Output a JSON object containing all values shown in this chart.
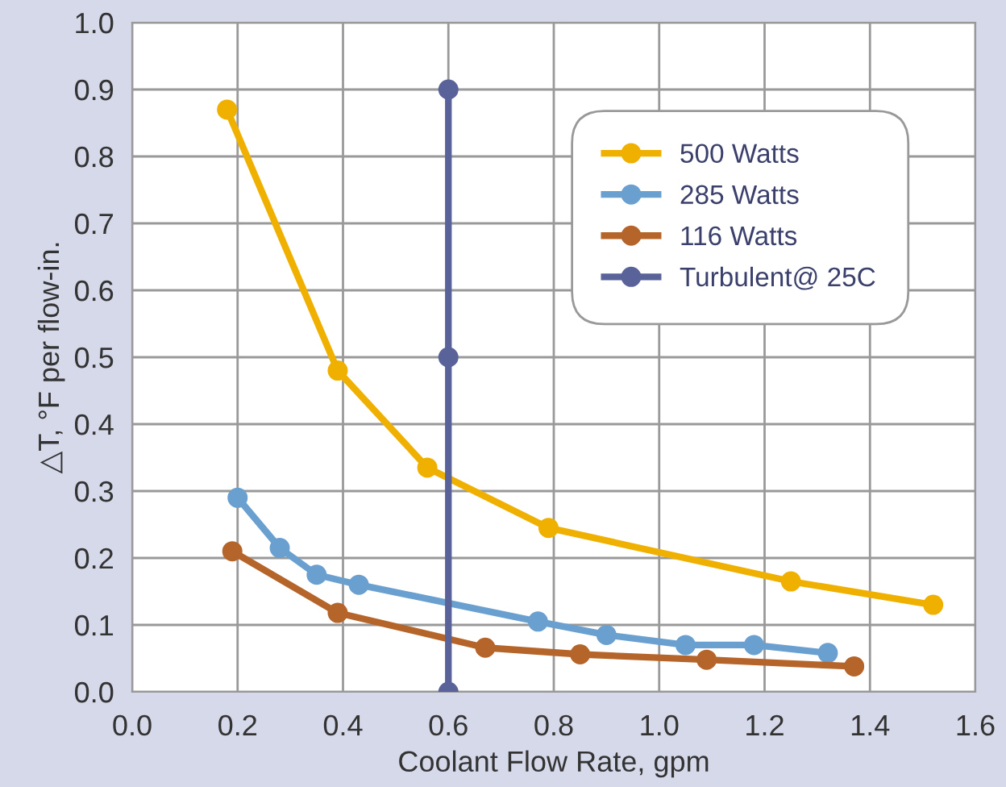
{
  "chart_data": {
    "type": "line",
    "xlabel": "Coolant Flow Rate, gpm",
    "ylabel": "△T, °F per flow-in.",
    "xlim": [
      0,
      1.6
    ],
    "xticks": [
      {
        "value": 0,
        "label": "0.0"
      },
      0.2,
      0.4,
      0.6,
      0.8,
      {
        "value": 1,
        "label": "1.0"
      },
      1.2,
      1.4,
      1.6
    ],
    "ylim": [
      0,
      1.0
    ],
    "yticks": [
      {
        "value": 0,
        "label": "0.0"
      },
      0.1,
      0.2,
      0.3,
      0.4,
      0.5,
      0.6,
      0.7,
      0.8,
      0.9,
      {
        "value": 1,
        "label": "1.0"
      }
    ],
    "grid": true,
    "legend": "top right",
    "marker": "circle",
    "line_style": "solid",
    "series": [
      {
        "name": "500 Watts",
        "color": "#f0b000",
        "x": [
          0.18,
          0.39,
          0.56,
          0.79,
          1.25,
          1.52
        ],
        "values": [
          0.87,
          0.48,
          0.335,
          0.245,
          0.165,
          0.13
        ]
      },
      {
        "name": "285 Watts",
        "color": "#6aa0d0",
        "x": [
          0.2,
          0.28,
          0.35,
          0.43,
          0.77,
          0.9,
          1.05,
          1.18,
          1.32
        ],
        "values": [
          0.29,
          0.215,
          0.175,
          0.16,
          0.105,
          0.085,
          0.07,
          0.07,
          0.058
        ]
      },
      {
        "name": "116 Watts",
        "color": "#b5652a",
        "x": [
          0.19,
          0.39,
          0.67,
          0.85,
          1.09,
          1.37
        ],
        "values": [
          0.21,
          0.118,
          0.066,
          0.056,
          0.048,
          0.038
        ]
      },
      {
        "name": "Turbulent@ 25C",
        "color": "#5a6399",
        "x": [
          0.6,
          0.6,
          0.6
        ],
        "values": [
          0.0,
          0.5,
          0.9
        ]
      }
    ]
  }
}
